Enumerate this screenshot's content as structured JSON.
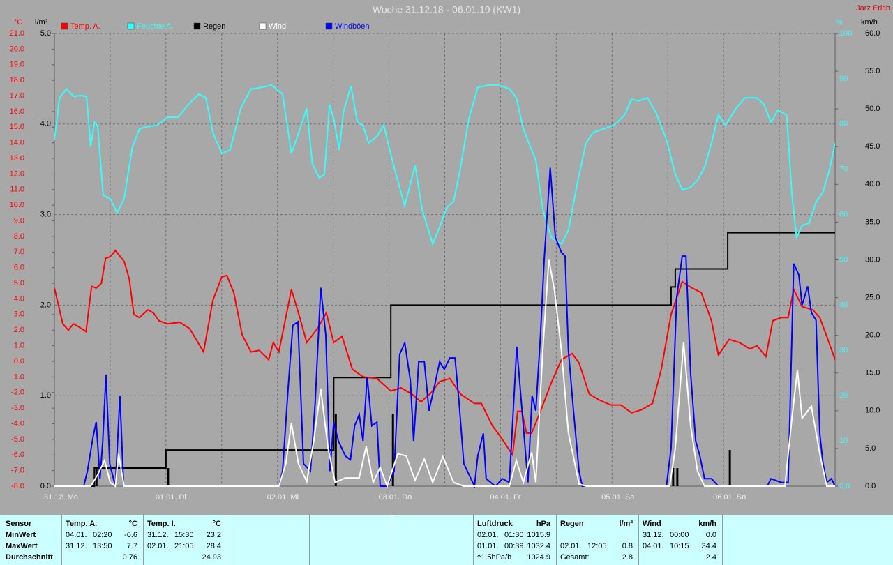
{
  "chart_data": {
    "type": "line",
    "title": "Woche 31.12.18 - 06.01.19 (KW1)",
    "author": "Jarz Erich",
    "background": "#a8a8a8",
    "grid": true,
    "xlim": [
      0,
      168
    ],
    "xticks": [
      {
        "value": 0,
        "label": "31.12. Mo"
      },
      {
        "value": 24,
        "label": "01.01. Di"
      },
      {
        "value": 48,
        "label": "02.01. Mi"
      },
      {
        "value": 72,
        "label": "03.01. Do"
      },
      {
        "value": 96,
        "label": "04.01. Fr"
      },
      {
        "value": 120,
        "label": "05.01. Sa"
      },
      {
        "value": 144,
        "label": "06.01. So"
      }
    ],
    "xminor": [
      12,
      36,
      60,
      84,
      108,
      132,
      156
    ],
    "axes": {
      "temp": {
        "label": "°C",
        "color": "#ff0000",
        "lim": [
          -8,
          21
        ],
        "ticks": [
          {
            "value": -8,
            "label": "-8.0"
          },
          {
            "value": -7,
            "label": "-7.0"
          },
          {
            "value": -6,
            "label": "-6.0"
          },
          {
            "value": -5,
            "label": "-5.0"
          },
          {
            "value": -4,
            "label": "-4.0"
          },
          {
            "value": -3,
            "label": "-3.0"
          },
          {
            "value": -2,
            "label": "-2.0"
          },
          {
            "value": -1,
            "label": "-1.0"
          },
          {
            "value": 0,
            "label": "0.0"
          },
          {
            "value": 1,
            "label": "1.0"
          },
          {
            "value": 2,
            "label": "2.0"
          },
          {
            "value": 3,
            "label": "3.0"
          },
          {
            "value": 4,
            "label": "4.0"
          },
          {
            "value": 5,
            "label": "5.0"
          },
          {
            "value": 6,
            "label": "6.0"
          },
          {
            "value": 7,
            "label": "7.0"
          },
          {
            "value": 8,
            "label": "8.0"
          },
          {
            "value": 9,
            "label": "9.0"
          },
          {
            "value": 10,
            "label": "10.0"
          },
          {
            "value": 11,
            "label": "11.0"
          },
          {
            "value": 12,
            "label": "12.0"
          },
          {
            "value": 13,
            "label": "13.0"
          },
          {
            "value": 14,
            "label": "14.0"
          },
          {
            "value": 15,
            "label": "15.0"
          },
          {
            "value": 16,
            "label": "16.0"
          },
          {
            "value": 17,
            "label": "17.0"
          },
          {
            "value": 18,
            "label": "18.0"
          },
          {
            "value": 19,
            "label": "19.0"
          },
          {
            "value": 20,
            "label": "20.0"
          },
          {
            "value": 21,
            "label": "21.0"
          }
        ]
      },
      "rain": {
        "label": "l/m²",
        "color": "#000000",
        "lim": [
          0,
          5
        ],
        "ticks": [
          {
            "value": 0,
            "label": "0.0"
          },
          {
            "value": 1,
            "label": "1.0"
          },
          {
            "value": 2,
            "label": "2.0"
          },
          {
            "value": 3,
            "label": "3.0"
          },
          {
            "value": 4,
            "label": "4.0"
          },
          {
            "value": 5,
            "label": "5.0"
          }
        ]
      },
      "humidity": {
        "label": "%",
        "color": "#33ffff",
        "lim": [
          0,
          100
        ],
        "ticks": [
          {
            "value": 0,
            "label": "0.0"
          },
          10,
          20,
          30,
          40,
          50,
          60,
          70,
          80,
          90,
          100
        ]
      },
      "wind": {
        "label": "km/h",
        "color": "#000000",
        "lim": [
          0,
          60
        ],
        "ticks": [
          {
            "value": 0,
            "label": "0.0"
          },
          {
            "value": 5,
            "label": "5.0"
          },
          {
            "value": 10,
            "label": "10.0"
          },
          {
            "value": 15,
            "label": "15.0"
          },
          {
            "value": 20,
            "label": "20.0"
          },
          {
            "value": 25,
            "label": "25.0"
          },
          {
            "value": 30,
            "label": "30.0"
          },
          {
            "value": 35,
            "label": "35.0"
          },
          {
            "value": 40,
            "label": "40.0"
          },
          {
            "value": 45,
            "label": "45.0"
          },
          {
            "value": 50,
            "label": "50.0"
          },
          {
            "value": 55,
            "label": "55.0"
          },
          {
            "value": 60,
            "label": "60.0"
          }
        ]
      }
    },
    "series": [
      {
        "name": "Temp. A.",
        "color": "#ff0000",
        "axis": "temp",
        "kind": "line",
        "x": [
          0,
          1.8,
          3.0,
          4.1,
          5.3,
          6.8,
          8.0,
          9.0,
          10.1,
          11.0,
          12.0,
          13.1,
          15.0,
          16.1,
          17.1,
          18.3,
          20.1,
          21.3,
          22.5,
          24.3,
          27.0,
          29.1,
          31.1,
          32.1,
          34.1,
          36.0,
          37.1,
          38.6,
          40.4,
          42.3,
          44.1,
          46.1,
          47.1,
          48.3,
          51.0,
          52.8,
          54.3,
          56.6,
          58.5,
          60.1,
          61.9,
          64.1,
          66.4,
          69.4,
          72.4,
          74.6,
          76.9,
          78.9,
          81.1,
          82.9,
          85.1,
          87.4,
          90.4,
          91.9,
          94.2,
          96.4,
          98.6,
          99.7,
          100.6,
          101.6,
          102.7,
          104.6,
          106.9,
          109.1,
          111.4,
          112.9,
          115.1,
          117.4,
          119.7,
          121.9,
          124.2,
          126.4,
          128.7,
          130.6,
          132.7,
          135.1,
          137.2,
          139.2,
          141.4,
          142.9,
          145.2,
          147.4,
          149.7,
          151.2,
          153.1,
          154.6,
          156.4,
          157.9,
          159.1,
          160.9,
          163.2,
          164.7,
          166.2,
          168
        ],
        "values": [
          4.7,
          2.4,
          2.0,
          2.4,
          2.2,
          1.9,
          4.8,
          4.7,
          5.0,
          6.6,
          6.7,
          7.1,
          6.4,
          5.3,
          3.0,
          2.8,
          3.3,
          3.1,
          2.6,
          2.4,
          2.5,
          2.1,
          1.1,
          0.6,
          3.9,
          5.4,
          5.5,
          4.4,
          1.7,
          0.6,
          0.7,
          0.1,
          1.2,
          0.6,
          4.6,
          2.8,
          1.2,
          2.1,
          3.1,
          1.2,
          1.6,
          -0.5,
          -1.0,
          -1.1,
          -1.9,
          -1.7,
          -2.1,
          -2.6,
          -2.0,
          -1.3,
          -1.1,
          -2.1,
          -2.7,
          -2.7,
          -4.1,
          -5.0,
          -6.0,
          -3.2,
          -3.2,
          -4.6,
          -4.6,
          -3.2,
          -1.4,
          0.1,
          0.5,
          -0.1,
          -2.1,
          -2.5,
          -2.8,
          -2.8,
          -3.3,
          -3.1,
          -2.7,
          -0.5,
          3.0,
          5.1,
          4.7,
          4.4,
          2.6,
          0.4,
          1.4,
          1.2,
          0.8,
          1.0,
          0.3,
          2.6,
          2.8,
          2.8,
          4.6,
          3.5,
          3.3,
          2.8,
          1.6,
          0.1
        ]
      },
      {
        "name": "Feuchte A.",
        "color": "#33ffff",
        "axis": "humidity",
        "kind": "line",
        "x": [
          0,
          1.1,
          2.6,
          4.1,
          5.6,
          6.9,
          7.8,
          8.6,
          9.3,
          10.5,
          12.0,
          13.5,
          15.0,
          16.8,
          18.3,
          19.8,
          22.1,
          24.3,
          26.6,
          28.8,
          31.1,
          32.6,
          34.1,
          36.0,
          37.8,
          40.1,
          42.3,
          44.6,
          46.8,
          49.1,
          51.0,
          53.1,
          54.3,
          55.5,
          57.0,
          58.1,
          59.2,
          60.1,
          61.3,
          62.2,
          63.8,
          65.2,
          66.4,
          67.6,
          69.4,
          70.9,
          71.6,
          73.1,
          75.4,
          77.6,
          79.1,
          81.4,
          82.9,
          84.4,
          85.9,
          87.4,
          89.2,
          91.1,
          93.4,
          95.6,
          97.9,
          99.4,
          100.9,
          102.4,
          103.6,
          105.1,
          106.9,
          109.1,
          110.6,
          112.6,
          114.4,
          115.9,
          118.1,
          120.4,
          122.7,
          124.2,
          125.7,
          127.6,
          129.4,
          131.7,
          133.6,
          135.1,
          136.9,
          138.4,
          139.9,
          141.4,
          142.9,
          144.4,
          146.7,
          148.6,
          151.2,
          152.7,
          154.2,
          155.7,
          157.6,
          158.7,
          159.7,
          160.9,
          162.4,
          163.9,
          165.4,
          166.9,
          168
        ],
        "values": [
          76.6,
          85.8,
          87.7,
          86.1,
          86.3,
          86.1,
          75.0,
          80.4,
          79.7,
          64.3,
          63.5,
          60.4,
          63.5,
          75.0,
          78.9,
          79.4,
          79.7,
          81.5,
          81.5,
          84.3,
          86.6,
          85.8,
          78.1,
          73.5,
          74.3,
          83.5,
          87.7,
          88.1,
          88.6,
          86.6,
          73.5,
          79.7,
          83.5,
          71.2,
          68.1,
          68.9,
          84.3,
          81.2,
          74.3,
          82.7,
          88.4,
          80.4,
          79.7,
          75.8,
          77.3,
          79.7,
          76.6,
          70.4,
          61.9,
          70.9,
          61.2,
          53.5,
          57.3,
          61.5,
          62.9,
          70.4,
          81.2,
          88.1,
          88.6,
          88.6,
          87.8,
          85.8,
          78.9,
          75.0,
          72.0,
          61.2,
          55.0,
          53.5,
          56.5,
          67.3,
          75.8,
          78.1,
          78.9,
          79.7,
          82.0,
          85.5,
          85.1,
          85.8,
          82.7,
          76.6,
          68.9,
          65.5,
          66.0,
          67.6,
          70.4,
          75.8,
          82.0,
          79.7,
          83.5,
          85.8,
          85.8,
          84.3,
          80.4,
          83.1,
          82.0,
          64.3,
          55.0,
          57.6,
          58.1,
          62.7,
          65.0,
          70.4,
          75.8
        ]
      },
      {
        "name": "Regen",
        "color": "#000000",
        "axis": "rain",
        "kind": "rain",
        "x": [
          8.6,
          24.0,
          60.1,
          72.4,
          132.7,
          133.6,
          144.9
        ],
        "values": [
          0.2,
          0.2,
          0.8,
          0.8,
          0.2,
          0.2,
          0.4
        ]
      },
      {
        "name": "Wind",
        "color": "#ffffff",
        "axis": "wind",
        "kind": "line",
        "x": [
          0,
          7.8,
          9.3,
          10.8,
          12.0,
          13.1,
          13.8,
          15.0,
          48.3,
          49.8,
          51.0,
          52.5,
          54.3,
          55.8,
          57.3,
          58.9,
          60.4,
          62.6,
          65.6,
          67.1,
          68.6,
          70.1,
          71.6,
          73.9,
          75.7,
          77.6,
          79.6,
          81.4,
          83.6,
          85.9,
          88.1,
          97.9,
          99.4,
          100.9,
          102.7,
          103.6,
          105.1,
          106.4,
          107.6,
          109.1,
          110.6,
          112.9,
          114.4,
          132.4,
          133.6,
          135.4,
          136.9,
          138.4,
          139.9,
          157.2,
          158.7,
          159.9,
          160.9,
          162.9,
          164.7,
          166.2,
          168
        ],
        "values": [
          0,
          0,
          1.5,
          3.4,
          0.5,
          0,
          4.3,
          0,
          0,
          3,
          8.3,
          3,
          0.6,
          6,
          12.9,
          5,
          0.5,
          1.1,
          1.1,
          5.3,
          0.5,
          2.5,
          0,
          4.3,
          4,
          0.8,
          3.6,
          0.5,
          3.9,
          0.5,
          0,
          0,
          3.4,
          0.5,
          4.5,
          0.5,
          18,
          30,
          26,
          18,
          7.1,
          0.3,
          0,
          0,
          5,
          19.1,
          8,
          2,
          0,
          0,
          9,
          15.4,
          9,
          10.6,
          4.3,
          0,
          0
        ]
      },
      {
        "name": "Windböen",
        "color": "#0000ff",
        "axis": "wind",
        "kind": "line",
        "x": [
          0,
          6.3,
          7.1,
          8.3,
          9.0,
          9.8,
          10.4,
          11.1,
          11.9,
          13.1,
          14.1,
          14.9,
          41.6,
          48.3,
          49.1,
          50.3,
          51.3,
          52.4,
          53.6,
          55.1,
          56.1,
          57.3,
          58.4,
          59.3,
          60.1,
          61.1,
          62.6,
          63.7,
          64.6,
          65.6,
          66.4,
          67.3,
          68.3,
          69.4,
          70.1,
          71.6,
          73.1,
          74.3,
          75.4,
          76.6,
          77.3,
          78.4,
          79.6,
          80.6,
          81.7,
          82.9,
          83.9,
          85.1,
          86.2,
          87.1,
          88.1,
          90.4,
          91.1,
          92.3,
          92.9,
          94.9,
          96.4,
          97.9,
          99.5,
          100.9,
          101.9,
          102.8,
          103.6,
          104.6,
          105.4,
          106.7,
          107.8,
          109.1,
          109.9,
          110.6,
          111.7,
          112.9,
          113.6,
          131.7,
          132.7,
          133.9,
          135.1,
          135.9,
          136.9,
          138.0,
          138.9,
          139.9,
          141.4,
          142.9,
          145.2,
          153.4,
          154.2,
          156.4,
          157.9,
          158.7,
          159.1,
          160.2,
          160.9,
          162.1,
          162.9,
          163.9,
          164.7,
          165.4,
          166.2,
          167.2,
          168
        ],
        "values": [
          0,
          0,
          2,
          6.5,
          8.5,
          1,
          6,
          14.8,
          3,
          0,
          12,
          0,
          0,
          0,
          2,
          13,
          21.3,
          21.8,
          3,
          2,
          11,
          26.3,
          20,
          2,
          8.5,
          6,
          4,
          3.5,
          8,
          9.5,
          6,
          14.5,
          8,
          8.5,
          0,
          0,
          2,
          17.5,
          19,
          14,
          6,
          16.5,
          16.5,
          10,
          13,
          16.5,
          15.5,
          17,
          17,
          11,
          3,
          0,
          4,
          7,
          1,
          0,
          1,
          0.5,
          18.5,
          8,
          0.5,
          12,
          10,
          20,
          30,
          42.2,
          33,
          31,
          30.5,
          18,
          10,
          2,
          0,
          0,
          5,
          25,
          30.5,
          30.5,
          15,
          6,
          4,
          1,
          1,
          0,
          0,
          0,
          1,
          0.5,
          0.5,
          20,
          29.5,
          28,
          24,
          26.5,
          23,
          22,
          7,
          3,
          0.5,
          1,
          0
        ]
      }
    ]
  },
  "stats": {
    "row_header": "Sensor",
    "row_labels": [
      "MinWert",
      "MaxWert",
      "Durchschnitt"
    ],
    "groups": [
      {
        "name": "Temp. A.",
        "unit": "°C",
        "rows": [
          {
            "date": "04.01.",
            "time": "02:20",
            "value": "-6.6"
          },
          {
            "date": "31.12.",
            "time": "13:50",
            "value": "7.7"
          },
          {
            "value": "0.76"
          }
        ]
      },
      {
        "name": "Temp. I.",
        "unit": "°C",
        "rows": [
          {
            "date": "31.12.",
            "time": "15:30",
            "value": "23.2"
          },
          {
            "date": "02.01.",
            "time": "21:05",
            "value": "28.4"
          },
          {
            "value": "24.93"
          }
        ]
      },
      {
        "name": "Luftdruck",
        "unit": "hPa",
        "rows": [
          {
            "date": "02.01.",
            "time": "01:30",
            "value": "1015.9"
          },
          {
            "date": "01.01.",
            "time": "00:39",
            "value": "1032.4"
          },
          {
            "date": "^1.5hPa/h",
            "value": "1024.9"
          }
        ]
      },
      {
        "name": "Regen",
        "unit": "l/m²",
        "rows": [
          {},
          {
            "date": "02.01.",
            "time": "12:05",
            "value": "0.8"
          },
          {
            "date": "Gesamt:",
            "value": "2.8"
          }
        ]
      },
      {
        "name": "Wind",
        "unit": "km/h",
        "rows": [
          {
            "date": "31.12.",
            "time": "00:00",
            "value": "0.0"
          },
          {
            "date": "04.01.",
            "time": "10:15",
            "value": "34.4"
          },
          {
            "value": "2.4"
          }
        ]
      }
    ]
  }
}
